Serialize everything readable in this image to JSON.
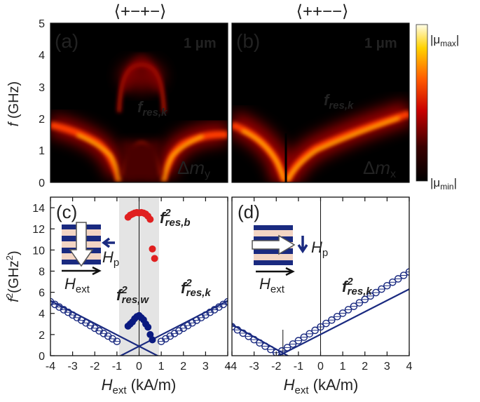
{
  "header": {
    "config_a": "⟨+−+−⟩",
    "config_b": "⟨++−−⟩",
    "config_a_color": "#5b8fe0",
    "config_b_color": "#e0202a"
  },
  "colorbar": {
    "max_label": "|μmax|",
    "min_label": "|μmin|"
  },
  "chart_data": [
    {
      "id": "a",
      "type": "heatmap",
      "panel_label": "(a)",
      "scale_label": "1 μm",
      "component_label": "Δmy",
      "ylabel": "f (GHz)",
      "ylim": [
        0,
        5
      ],
      "yticks": [
        0,
        1,
        2,
        3,
        4,
        5
      ],
      "xlim": [
        -4,
        4
      ],
      "mode_label": "fres,k"
    },
    {
      "id": "b",
      "type": "heatmap",
      "panel_label": "(b)",
      "scale_label": "1 μm",
      "component_label": "Δmx",
      "xlim": [
        -4,
        4
      ],
      "ylim": [
        0,
        5
      ],
      "mode_label": "fres,k"
    },
    {
      "id": "c",
      "type": "scatter",
      "panel_label": "(c)",
      "xlabel": "Hext (kA/m)",
      "ylabel": "f2(GHz2)",
      "xlim": [
        -4,
        4
      ],
      "ylim": [
        0,
        15
      ],
      "xticks": [
        -4,
        -3,
        -2,
        -1,
        0,
        1,
        2,
        3,
        4
      ],
      "yticks": [
        0,
        2,
        4,
        6,
        8,
        10,
        12,
        14
      ],
      "shaded_x_range": [
        -0.9,
        0.9
      ],
      "labels": {
        "bulk": "f2res,b",
        "well": "f2res,w",
        "edge": "f2res,k",
        "hp": "Hp",
        "hext": "Hext"
      },
      "series": [
        {
          "name": "fres,k^2 (edge mode, open circles)",
          "color": "#1a2a80",
          "x": [
            -4,
            -3.8,
            -3.6,
            -3.4,
            -3.2,
            -3,
            -2.8,
            -2.6,
            -2.4,
            -2.2,
            -2,
            -1.8,
            -1.6,
            -1.4,
            -1.2,
            -1,
            1,
            1.2,
            1.4,
            1.6,
            1.8,
            2,
            2.2,
            2.4,
            2.6,
            2.8,
            3,
            3.2,
            3.4,
            3.6,
            3.8,
            4
          ],
          "y": [
            5.1,
            4.85,
            4.6,
            4.35,
            4.1,
            3.85,
            3.6,
            3.35,
            3.1,
            2.85,
            2.6,
            2.35,
            2.1,
            1.85,
            1.6,
            1.35,
            1.35,
            1.6,
            1.85,
            2.1,
            2.35,
            2.6,
            2.85,
            3.1,
            3.35,
            3.6,
            3.85,
            4.1,
            4.35,
            4.6,
            4.85,
            5.1
          ]
        },
        {
          "name": "fres,b^2 (bulk mode)",
          "color": "#e02020",
          "x": [
            -0.5,
            -0.4,
            -0.3,
            -0.2,
            -0.1,
            0,
            0.1,
            0.2,
            0.3,
            0.4,
            0.5,
            0.6,
            0.7
          ],
          "y": [
            13.1,
            13.3,
            13.4,
            13.5,
            13.55,
            13.5,
            13.55,
            13.5,
            13.4,
            13.2,
            12.9,
            10.1,
            9.2
          ]
        },
        {
          "name": "fres,w^2 (well mode)",
          "color": "#0a1a80",
          "x": [
            -0.5,
            -0.4,
            -0.3,
            -0.2,
            -0.1,
            0,
            0.1,
            0.2,
            0.3,
            0.4,
            0.5,
            0.6
          ],
          "y": [
            2.8,
            3.0,
            3.2,
            3.5,
            3.7,
            3.8,
            3.6,
            3.4,
            3.0,
            2.7,
            2.0,
            1.5
          ]
        }
      ],
      "fit_lines": [
        {
          "from": [
            -4,
            5.2
          ],
          "to": [
            1.2,
            -0.4
          ]
        },
        {
          "from": [
            -1.2,
            -0.4
          ],
          "to": [
            4,
            5.2
          ]
        }
      ]
    },
    {
      "id": "d",
      "type": "scatter",
      "panel_label": "(d)",
      "xlabel": "Hext (kA/m)",
      "xlim": [
        -4,
        4
      ],
      "ylim": [
        0,
        15
      ],
      "xticks": [
        -4,
        -3,
        -2,
        -1,
        0,
        1,
        2,
        3,
        4
      ],
      "labels": {
        "edge": "f2res,k",
        "hp": "Hp",
        "hext": "Hext"
      },
      "vertex_x": -1.7,
      "series": [
        {
          "name": "fres,k^2 (open circles)",
          "color": "#1a2a80",
          "x": [
            -4,
            -3.75,
            -3.5,
            -3.25,
            -3,
            -2.75,
            -2.5,
            -2.25,
            -2,
            -1.75,
            -1.5,
            -1.25,
            -1,
            -0.75,
            -0.5,
            -0.25,
            0,
            0.25,
            0.5,
            0.75,
            1,
            1.25,
            1.5,
            1.75,
            2,
            2.25,
            2.5,
            2.75,
            3,
            3.25,
            3.5,
            3.75,
            4
          ],
          "y": [
            2.75,
            2.44,
            2.13,
            1.83,
            1.52,
            1.21,
            0.9,
            0.59,
            0.28,
            0.45,
            0.77,
            1.1,
            1.42,
            1.75,
            2.07,
            2.4,
            2.72,
            3.05,
            3.37,
            3.7,
            4.02,
            4.35,
            4.67,
            5.0,
            5.32,
            5.65,
            5.97,
            6.3,
            6.62,
            6.95,
            7.27,
            7.6,
            7.92
          ]
        }
      ],
      "fit_lines": [
        {
          "from": [
            -4,
            2.95
          ],
          "to": [
            -1.1,
            -0.45
          ]
        },
        {
          "from": [
            -2.3,
            -0.45
          ],
          "to": [
            4,
            6.3
          ]
        }
      ]
    }
  ]
}
